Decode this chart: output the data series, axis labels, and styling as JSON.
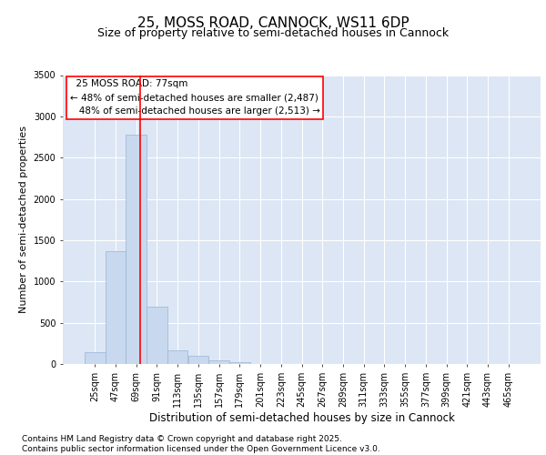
{
  "title1": "25, MOSS ROAD, CANNOCK, WS11 6DP",
  "title2": "Size of property relative to semi-detached houses in Cannock",
  "xlabel": "Distribution of semi-detached houses by size in Cannock",
  "ylabel": "Number of semi-detached properties",
  "bar_color": "#c8d8ee",
  "bar_edge_color": "#9ab4d4",
  "background_color": "#dce6f5",
  "grid_color": "#ffffff",
  "fig_background": "#ffffff",
  "categories": [
    "25sqm",
    "47sqm",
    "69sqm",
    "91sqm",
    "113sqm",
    "135sqm",
    "157sqm",
    "179sqm",
    "201sqm",
    "223sqm",
    "245sqm",
    "267sqm",
    "289sqm",
    "311sqm",
    "333sqm",
    "355sqm",
    "377sqm",
    "399sqm",
    "421sqm",
    "443sqm",
    "465sqm"
  ],
  "values": [
    145,
    1370,
    2780,
    700,
    160,
    100,
    45,
    20,
    0,
    0,
    0,
    0,
    0,
    0,
    0,
    0,
    0,
    0,
    0,
    0,
    0
  ],
  "ylim": [
    0,
    3500
  ],
  "yticks": [
    0,
    500,
    1000,
    1500,
    2000,
    2500,
    3000,
    3500
  ],
  "property_label": "25 MOSS ROAD: 77sqm",
  "pct_smaller": 48,
  "n_smaller": 2487,
  "pct_larger": 48,
  "n_larger": 2513,
  "vline_x_index": 2.18,
  "footer1": "Contains HM Land Registry data © Crown copyright and database right 2025.",
  "footer2": "Contains public sector information licensed under the Open Government Licence v3.0.",
  "title1_fontsize": 11,
  "title2_fontsize": 9,
  "xlabel_fontsize": 8.5,
  "ylabel_fontsize": 8,
  "tick_fontsize": 7,
  "annotation_fontsize": 7.5,
  "footer_fontsize": 6.5
}
